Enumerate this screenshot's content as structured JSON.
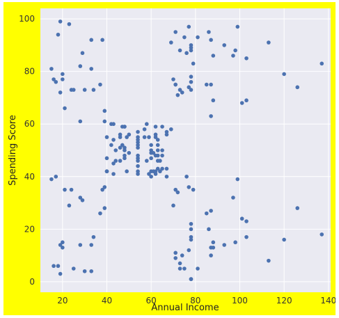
{
  "chart_data": {
    "type": "scatter",
    "title": "",
    "xlabel": "Annual Income",
    "ylabel": "Spending Score",
    "xlim": [
      10,
      141
    ],
    "ylim": [
      -4,
      104
    ],
    "xticks": [
      20,
      40,
      60,
      80,
      100,
      120,
      140
    ],
    "yticks": [
      0,
      20,
      40,
      60,
      80,
      100
    ],
    "grid": true,
    "legend": "none",
    "background_color": "#ffff00",
    "plot_bg_color": "#eaeaf2",
    "point_color": "#4c72b0",
    "points": [
      [
        15,
        39
      ],
      [
        15,
        81
      ],
      [
        16,
        6
      ],
      [
        16,
        77
      ],
      [
        17,
        40
      ],
      [
        17,
        76
      ],
      [
        18,
        6
      ],
      [
        18,
        94
      ],
      [
        19,
        3
      ],
      [
        19,
        72
      ],
      [
        19,
        14
      ],
      [
        19,
        99
      ],
      [
        20,
        15
      ],
      [
        20,
        77
      ],
      [
        20,
        13
      ],
      [
        20,
        79
      ],
      [
        21,
        35
      ],
      [
        21,
        66
      ],
      [
        23,
        29
      ],
      [
        23,
        98
      ],
      [
        24,
        35
      ],
      [
        24,
        73
      ],
      [
        25,
        5
      ],
      [
        25,
        73
      ],
      [
        28,
        14
      ],
      [
        28,
        82
      ],
      [
        28,
        32
      ],
      [
        28,
        61
      ],
      [
        29,
        31
      ],
      [
        29,
        87
      ],
      [
        30,
        4
      ],
      [
        30,
        73
      ],
      [
        33,
        4
      ],
      [
        33,
        92
      ],
      [
        33,
        14
      ],
      [
        33,
        81
      ],
      [
        34,
        17
      ],
      [
        34,
        73
      ],
      [
        37,
        26
      ],
      [
        37,
        75
      ],
      [
        38,
        35
      ],
      [
        38,
        92
      ],
      [
        39,
        36
      ],
      [
        39,
        61
      ],
      [
        39,
        28
      ],
      [
        39,
        65
      ],
      [
        40,
        55
      ],
      [
        40,
        47
      ],
      [
        40,
        42
      ],
      [
        40,
        42
      ],
      [
        42,
        52
      ],
      [
        42,
        60
      ],
      [
        43,
        54
      ],
      [
        43,
        60
      ],
      [
        43,
        45
      ],
      [
        43,
        41
      ],
      [
        44,
        50
      ],
      [
        44,
        46
      ],
      [
        46,
        51
      ],
      [
        46,
        46
      ],
      [
        46,
        56
      ],
      [
        46,
        55
      ],
      [
        47,
        52
      ],
      [
        47,
        59
      ],
      [
        48,
        51
      ],
      [
        48,
        59
      ],
      [
        48,
        50
      ],
      [
        48,
        48
      ],
      [
        48,
        59
      ],
      [
        48,
        47
      ],
      [
        49,
        55
      ],
      [
        49,
        42
      ],
      [
        50,
        49
      ],
      [
        50,
        56
      ],
      [
        54,
        47
      ],
      [
        54,
        54
      ],
      [
        54,
        53
      ],
      [
        54,
        48
      ],
      [
        54,
        52
      ],
      [
        54,
        42
      ],
      [
        54,
        51
      ],
      [
        54,
        55
      ],
      [
        54,
        41
      ],
      [
        54,
        44
      ],
      [
        54,
        57
      ],
      [
        54,
        46
      ],
      [
        57,
        58
      ],
      [
        57,
        55
      ],
      [
        58,
        60
      ],
      [
        58,
        46
      ],
      [
        59,
        55
      ],
      [
        59,
        41
      ],
      [
        60,
        49
      ],
      [
        60,
        40
      ],
      [
        60,
        42
      ],
      [
        60,
        52
      ],
      [
        60,
        47
      ],
      [
        60,
        50
      ],
      [
        61,
        42
      ],
      [
        61,
        49
      ],
      [
        62,
        41
      ],
      [
        62,
        48
      ],
      [
        62,
        59
      ],
      [
        62,
        55
      ],
      [
        62,
        56
      ],
      [
        62,
        42
      ],
      [
        63,
        50
      ],
      [
        63,
        46
      ],
      [
        63,
        43
      ],
      [
        63,
        48
      ],
      [
        63,
        52
      ],
      [
        63,
        54
      ],
      [
        64,
        42
      ],
      [
        64,
        46
      ],
      [
        65,
        48
      ],
      [
        65,
        50
      ],
      [
        65,
        43
      ],
      [
        65,
        59
      ],
      [
        67,
        43
      ],
      [
        67,
        57
      ],
      [
        67,
        56
      ],
      [
        67,
        40
      ],
      [
        69,
        58
      ],
      [
        69,
        91
      ],
      [
        70,
        29
      ],
      [
        70,
        77
      ],
      [
        71,
        35
      ],
      [
        71,
        95
      ],
      [
        71,
        11
      ],
      [
        71,
        75
      ],
      [
        71,
        9
      ],
      [
        71,
        75
      ],
      [
        72,
        34
      ],
      [
        72,
        71
      ],
      [
        73,
        5
      ],
      [
        73,
        88
      ],
      [
        73,
        7
      ],
      [
        73,
        73
      ],
      [
        74,
        10
      ],
      [
        74,
        72
      ],
      [
        75,
        5
      ],
      [
        75,
        93
      ],
      [
        76,
        40
      ],
      [
        76,
        87
      ],
      [
        77,
        12
      ],
      [
        77,
        97
      ],
      [
        77,
        36
      ],
      [
        77,
        74
      ],
      [
        78,
        22
      ],
      [
        78,
        90
      ],
      [
        78,
        17
      ],
      [
        78,
        88
      ],
      [
        78,
        20
      ],
      [
        78,
        76
      ],
      [
        78,
        16
      ],
      [
        78,
        89
      ],
      [
        78,
        1
      ],
      [
        78,
        78
      ],
      [
        78,
        1
      ],
      [
        78,
        73
      ],
      [
        79,
        35
      ],
      [
        79,
        83
      ],
      [
        81,
        5
      ],
      [
        81,
        93
      ],
      [
        85,
        26
      ],
      [
        85,
        75
      ],
      [
        86,
        20
      ],
      [
        86,
        95
      ],
      [
        87,
        27
      ],
      [
        87,
        63
      ],
      [
        87,
        13
      ],
      [
        87,
        75
      ],
      [
        87,
        10
      ],
      [
        87,
        92
      ],
      [
        88,
        13
      ],
      [
        88,
        86
      ],
      [
        88,
        15
      ],
      [
        88,
        69
      ],
      [
        93,
        14
      ],
      [
        93,
        90
      ],
      [
        97,
        32
      ],
      [
        97,
        86
      ],
      [
        98,
        15
      ],
      [
        98,
        88
      ],
      [
        99,
        39
      ],
      [
        99,
        97
      ],
      [
        101,
        24
      ],
      [
        101,
        68
      ],
      [
        103,
        17
      ],
      [
        103,
        85
      ],
      [
        103,
        23
      ],
      [
        103,
        69
      ],
      [
        113,
        8
      ],
      [
        113,
        91
      ],
      [
        120,
        16
      ],
      [
        120,
        79
      ],
      [
        126,
        28
      ],
      [
        126,
        74
      ],
      [
        137,
        18
      ],
      [
        137,
        83
      ]
    ]
  }
}
